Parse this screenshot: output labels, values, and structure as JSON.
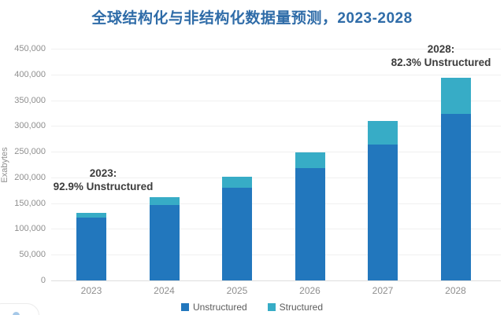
{
  "title": "全球结构化与非结构化数据量预测，2023-2028",
  "y_axis": {
    "label": "Exabytes",
    "tick_labels": [
      "0",
      "50,000",
      "100,000",
      "150,000",
      "200,000",
      "250,000",
      "300,000",
      "350,000",
      "400,000",
      "450,000"
    ]
  },
  "annotations": {
    "y2023": {
      "line1": "2023:",
      "line2": "92.9% Unstructured"
    },
    "y2028": {
      "line1": "2028:",
      "line2": "82.3% Unstructured"
    }
  },
  "legend": [
    {
      "label": "Unstructured",
      "color": "#2277bd"
    },
    {
      "label": "Structured",
      "color": "#37acc6"
    }
  ],
  "colors": {
    "title": "#2f6ca8",
    "unstructured": "#2277bd",
    "structured": "#37acc6",
    "annotation_text": "#3c3c3c",
    "axis_text": "#8f8f8f",
    "gridline": "#f0f0f0"
  },
  "chart_data": {
    "type": "bar",
    "stacked": true,
    "title": "全球结构化与非结构化数据量预测，2023-2028",
    "xlabel": "",
    "ylabel": "Exabytes",
    "categories": [
      "2023",
      "2024",
      "2025",
      "2026",
      "2027",
      "2028"
    ],
    "series": [
      {
        "name": "Unstructured",
        "color": "#2277bd",
        "values": [
          121700,
          147000,
          180000,
          218000,
          264000,
          323400
        ]
      },
      {
        "name": "Structured",
        "color": "#37acc6",
        "values": [
          9300,
          15000,
          21000,
          31000,
          46000,
          69600
        ]
      }
    ],
    "totals": [
      131000,
      162000,
      201000,
      249000,
      310000,
      393000
    ],
    "ylim": [
      0,
      450000
    ],
    "ytick_step": 50000,
    "grid": true,
    "legend_position": "bottom",
    "annotations": [
      {
        "x": "2023",
        "text": "2023: 92.9% Unstructured"
      },
      {
        "x": "2028",
        "text": "2028: 82.3% Unstructured"
      }
    ]
  }
}
